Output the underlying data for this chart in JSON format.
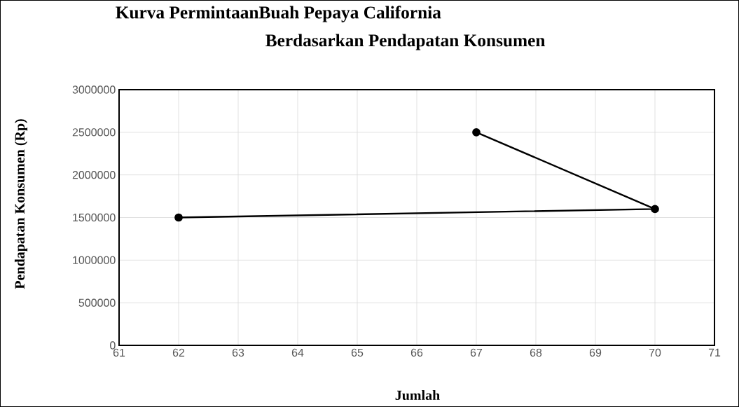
{
  "chart_data": {
    "type": "line",
    "title": "Kurva PermintaanBuah Pepaya California",
    "subtitle": "Berdasarkan Pendapatan Konsumen",
    "xlabel": "Jumlah",
    "ylabel": "Pendapatan Konsumen (Rp)",
    "series": [
      {
        "color": "#000000",
        "x": [
          62,
          70,
          67
        ],
        "values": [
          1500000,
          1600000,
          2500000
        ]
      }
    ],
    "xlim": [
      61,
      71
    ],
    "xticks": [
      61,
      62,
      63,
      64,
      65,
      66,
      67,
      68,
      69,
      70,
      71
    ],
    "ylim": [
      0,
      3000000
    ],
    "yticks": [
      0,
      500000,
      1000000,
      1500000,
      2000000,
      2500000,
      3000000
    ],
    "grid": true,
    "marker": "circle",
    "line_style": "solid"
  }
}
